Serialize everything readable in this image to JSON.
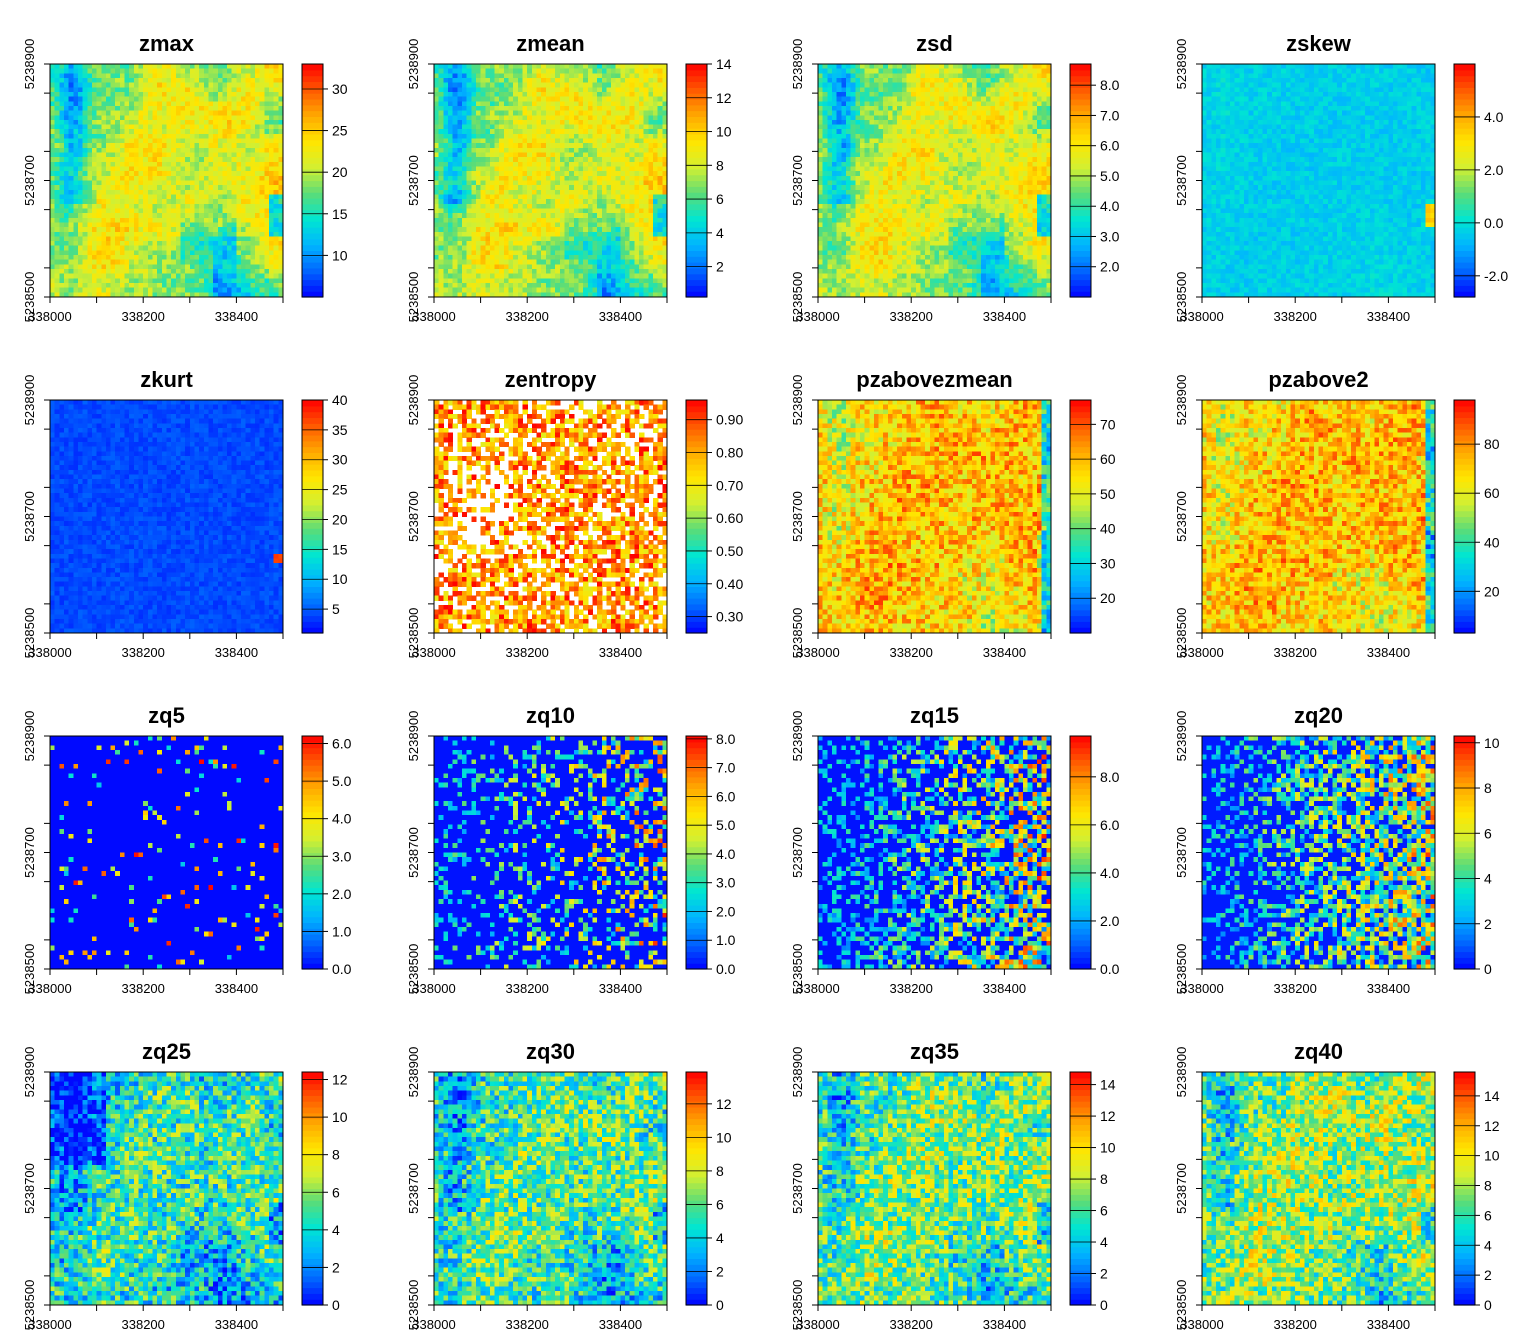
{
  "chart_data": [
    {
      "type": "heatmap",
      "title": "zmax",
      "colorbar": {
        "ticks": [
          "10",
          "15",
          "20",
          "25",
          "30"
        ],
        "values": [
          10,
          15,
          20,
          25,
          30
        ],
        "range": [
          5,
          33
        ]
      },
      "field": {
        "pattern": "height",
        "seed": 1
      }
    },
    {
      "type": "heatmap",
      "title": "zmean",
      "colorbar": {
        "ticks": [
          "2",
          "4",
          "6",
          "8",
          "10",
          "12",
          "14"
        ],
        "values": [
          2,
          4,
          6,
          8,
          10,
          12,
          14
        ],
        "range": [
          0.2,
          14
        ]
      },
      "field": {
        "pattern": "height",
        "seed": 2
      }
    },
    {
      "type": "heatmap",
      "title": "zsd",
      "colorbar": {
        "ticks": [
          "2.0",
          "3.0",
          "4.0",
          "5.0",
          "6.0",
          "7.0",
          "8.0"
        ],
        "values": [
          2,
          3,
          4,
          5,
          6,
          7,
          8
        ],
        "range": [
          1,
          8.7
        ]
      },
      "field": {
        "pattern": "height",
        "seed": 3
      }
    },
    {
      "type": "heatmap",
      "title": "zskew",
      "colorbar": {
        "ticks": [
          "-2.0",
          "0.0",
          "2.0",
          "4.0"
        ],
        "values": [
          -2,
          0,
          2,
          4
        ],
        "range": [
          -2.8,
          6
        ]
      },
      "field": {
        "pattern": "skew",
        "seed": 4
      }
    },
    {
      "type": "heatmap",
      "title": "zkurt",
      "colorbar": {
        "ticks": [
          "5",
          "10",
          "15",
          "20",
          "25",
          "30",
          "35",
          "40"
        ],
        "values": [
          5,
          10,
          15,
          20,
          25,
          30,
          35,
          40
        ],
        "range": [
          1,
          40
        ]
      },
      "field": {
        "pattern": "kurt",
        "seed": 5
      }
    },
    {
      "type": "heatmap",
      "title": "zentropy",
      "colorbar": {
        "ticks": [
          "0.30",
          "0.40",
          "0.50",
          "0.60",
          "0.70",
          "0.80",
          "0.90"
        ],
        "values": [
          0.3,
          0.4,
          0.5,
          0.6,
          0.7,
          0.8,
          0.9
        ],
        "range": [
          0.25,
          0.96
        ]
      },
      "field": {
        "pattern": "entropy",
        "seed": 6
      }
    },
    {
      "type": "heatmap",
      "title": "pzabovezmean",
      "colorbar": {
        "ticks": [
          "20",
          "30",
          "40",
          "50",
          "60",
          "70"
        ],
        "values": [
          20,
          30,
          40,
          50,
          60,
          70
        ],
        "range": [
          10,
          77
        ]
      },
      "field": {
        "pattern": "cover",
        "seed": 7
      }
    },
    {
      "type": "heatmap",
      "title": "pzabove2",
      "colorbar": {
        "ticks": [
          "20",
          "40",
          "60",
          "80"
        ],
        "values": [
          20,
          40,
          60,
          80
        ],
        "range": [
          3,
          98
        ]
      },
      "field": {
        "pattern": "cover",
        "seed": 8
      }
    },
    {
      "type": "heatmap",
      "title": "zq5",
      "colorbar": {
        "ticks": [
          "0.0",
          "1.0",
          "2.0",
          "3.0",
          "4.0",
          "5.0",
          "6.0"
        ],
        "values": [
          0,
          1,
          2,
          3,
          4,
          5,
          6
        ],
        "range": [
          0,
          6.2
        ]
      },
      "field": {
        "pattern": "q5",
        "seed": 9
      }
    },
    {
      "type": "heatmap",
      "title": "zq10",
      "colorbar": {
        "ticks": [
          "0.0",
          "1.0",
          "2.0",
          "3.0",
          "4.0",
          "5.0",
          "6.0",
          "7.0",
          "8.0"
        ],
        "values": [
          0,
          1,
          2,
          3,
          4,
          5,
          6,
          7,
          8
        ],
        "range": [
          0,
          8.1
        ]
      },
      "field": {
        "pattern": "q10",
        "seed": 10
      }
    },
    {
      "type": "heatmap",
      "title": "zq15",
      "colorbar": {
        "ticks": [
          "0.0",
          "2.0",
          "4.0",
          "6.0",
          "8.0"
        ],
        "values": [
          0,
          2,
          4,
          6,
          8
        ],
        "range": [
          0,
          9.7
        ]
      },
      "field": {
        "pattern": "q15",
        "seed": 11
      }
    },
    {
      "type": "heatmap",
      "title": "zq20",
      "colorbar": {
        "ticks": [
          "0",
          "2",
          "4",
          "6",
          "8",
          "10"
        ],
        "values": [
          0,
          2,
          4,
          6,
          8,
          10
        ],
        "range": [
          0,
          10.3
        ]
      },
      "field": {
        "pattern": "q20",
        "seed": 12
      }
    },
    {
      "type": "heatmap",
      "title": "zq25",
      "colorbar": {
        "ticks": [
          "0",
          "2",
          "4",
          "6",
          "8",
          "10",
          "12"
        ],
        "values": [
          0,
          2,
          4,
          6,
          8,
          10,
          12
        ],
        "range": [
          0,
          12.4
        ]
      },
      "field": {
        "pattern": "q25",
        "seed": 13
      }
    },
    {
      "type": "heatmap",
      "title": "zq30",
      "colorbar": {
        "ticks": [
          "0",
          "2",
          "4",
          "6",
          "8",
          "10",
          "12"
        ],
        "values": [
          0,
          2,
          4,
          6,
          8,
          10,
          12
        ],
        "range": [
          0,
          13.9
        ]
      },
      "field": {
        "pattern": "q30",
        "seed": 14
      }
    },
    {
      "type": "heatmap",
      "title": "zq35",
      "colorbar": {
        "ticks": [
          "0",
          "2",
          "4",
          "6",
          "8",
          "10",
          "12",
          "14"
        ],
        "values": [
          0,
          2,
          4,
          6,
          8,
          10,
          12,
          14
        ],
        "range": [
          0,
          14.8
        ]
      },
      "field": {
        "pattern": "q35",
        "seed": 15
      }
    },
    {
      "type": "heatmap",
      "title": "zq40",
      "colorbar": {
        "ticks": [
          "0",
          "2",
          "4",
          "6",
          "8",
          "10",
          "12",
          "14"
        ],
        "values": [
          0,
          2,
          4,
          6,
          8,
          10,
          12,
          14
        ],
        "range": [
          0,
          15.6
        ]
      },
      "field": {
        "pattern": "q40",
        "seed": 16
      }
    }
  ],
  "axes": {
    "x_ticks": [
      338000,
      338200,
      338400
    ],
    "y_ticks": [
      5238500,
      5238700,
      5238900
    ],
    "x_range": [
      338000,
      338500
    ],
    "y_range": [
      5238500,
      5238900
    ]
  },
  "palette": [
    "#0000ff",
    "#0064ff",
    "#00b4ff",
    "#00e6d2",
    "#5adc78",
    "#d2f032",
    "#ffe600",
    "#ffaa00",
    "#ff5a00",
    "#ff0000"
  ]
}
